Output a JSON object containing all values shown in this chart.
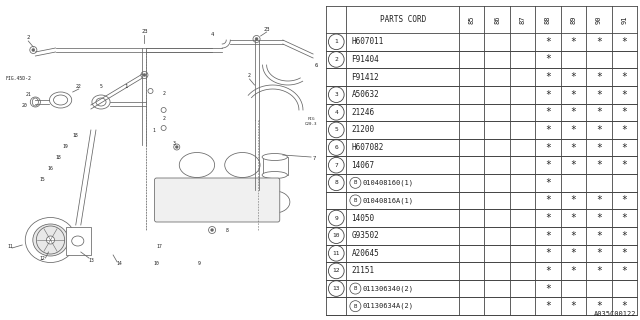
{
  "figure_code": "A035C00122",
  "bg_color": "#ffffff",
  "rows": [
    {
      "num": "1",
      "circle": true,
      "sub_b": false,
      "part": "H607011",
      "stars": [
        false,
        false,
        false,
        true,
        true,
        true,
        true
      ]
    },
    {
      "num": "2",
      "circle": true,
      "sub_b": false,
      "part": "F91404",
      "stars": [
        false,
        false,
        false,
        true,
        false,
        false,
        false
      ]
    },
    {
      "num": "2",
      "circle": false,
      "sub_b": false,
      "part": "F91412",
      "stars": [
        false,
        false,
        false,
        true,
        true,
        true,
        true
      ]
    },
    {
      "num": "3",
      "circle": true,
      "sub_b": false,
      "part": "A50632",
      "stars": [
        false,
        false,
        false,
        true,
        true,
        true,
        true
      ]
    },
    {
      "num": "4",
      "circle": true,
      "sub_b": false,
      "part": "21246",
      "stars": [
        false,
        false,
        false,
        true,
        true,
        true,
        true
      ]
    },
    {
      "num": "5",
      "circle": true,
      "sub_b": false,
      "part": "21200",
      "stars": [
        false,
        false,
        false,
        true,
        true,
        true,
        true
      ]
    },
    {
      "num": "6",
      "circle": true,
      "sub_b": false,
      "part": "H607082",
      "stars": [
        false,
        false,
        false,
        true,
        true,
        true,
        true
      ]
    },
    {
      "num": "7",
      "circle": true,
      "sub_b": false,
      "part": "14067",
      "stars": [
        false,
        false,
        false,
        true,
        true,
        true,
        true
      ]
    },
    {
      "num": "8",
      "circle": true,
      "sub_b": true,
      "part": "010408160(1)",
      "stars": [
        false,
        false,
        false,
        true,
        false,
        false,
        false
      ]
    },
    {
      "num": "8",
      "circle": false,
      "sub_b": true,
      "part": "01040816A(1)",
      "stars": [
        false,
        false,
        false,
        true,
        true,
        true,
        true
      ]
    },
    {
      "num": "9",
      "circle": true,
      "sub_b": false,
      "part": "14050",
      "stars": [
        false,
        false,
        false,
        true,
        true,
        true,
        true
      ]
    },
    {
      "num": "10",
      "circle": true,
      "sub_b": false,
      "part": "G93502",
      "stars": [
        false,
        false,
        false,
        true,
        true,
        true,
        true
      ]
    },
    {
      "num": "11",
      "circle": true,
      "sub_b": false,
      "part": "A20645",
      "stars": [
        false,
        false,
        false,
        true,
        true,
        true,
        true
      ]
    },
    {
      "num": "12",
      "circle": true,
      "sub_b": false,
      "part": "21151",
      "stars": [
        false,
        false,
        false,
        true,
        true,
        true,
        true
      ]
    },
    {
      "num": "13",
      "circle": true,
      "sub_b": true,
      "part": "011306340(2)",
      "stars": [
        false,
        false,
        false,
        true,
        false,
        false,
        false
      ]
    },
    {
      "num": "13",
      "circle": false,
      "sub_b": true,
      "part": "01130634A(2)",
      "stars": [
        false,
        false,
        false,
        true,
        true,
        true,
        true
      ]
    }
  ],
  "col_years": [
    "85",
    "86",
    "87",
    "88",
    "89",
    "90",
    "91"
  ],
  "line_color": "#444444",
  "text_color": "#222222",
  "diagram_line_color": "#666666"
}
